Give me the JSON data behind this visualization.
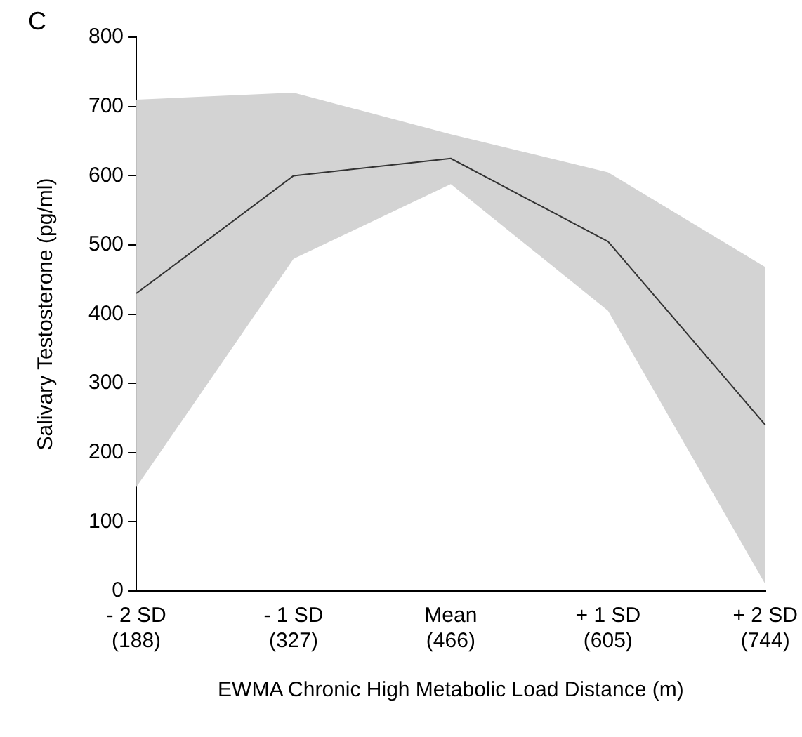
{
  "chart_data": {
    "type": "line",
    "title": "C",
    "xlabel": "EWMA Chronic High Metabolic Load Distance (m)",
    "ylabel": "Salivary Testosterone (pg/ml)",
    "categories": [
      "- 2 SD\n(188)",
      "- 1 SD\n(327)",
      "Mean\n(466)",
      "+ 1 SD\n(605)",
      "+ 2 SD\n(744)"
    ],
    "series": [
      {
        "color": "#333333",
        "values": [
          430,
          600,
          625,
          505,
          240
        ],
        "lower": [
          150,
          480,
          588,
          405,
          10
        ],
        "upper": [
          710,
          720,
          660,
          605,
          468
        ]
      }
    ],
    "ylim": [
      0,
      800
    ],
    "yticks": [
      0,
      100,
      200,
      300,
      400,
      500,
      600,
      700,
      800
    ],
    "grid": false,
    "legend": false,
    "marker": "none",
    "line_style": "solid"
  }
}
